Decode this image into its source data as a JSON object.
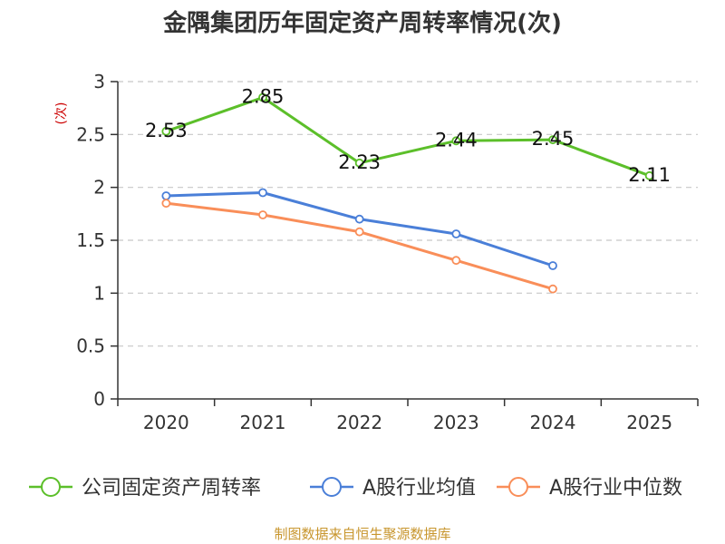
{
  "chart_data": {
    "type": "line",
    "title": "金隅集团历年固定资产周转率情况(次)",
    "ylabel": "(次)",
    "xlabel": "",
    "categories": [
      "2020",
      "2021",
      "2022",
      "2023",
      "2024",
      "2025"
    ],
    "ylim": [
      0,
      3
    ],
    "yticks": [
      "0",
      "0.5",
      "1",
      "1.5",
      "2",
      "2.5",
      "3"
    ],
    "grid": true,
    "legend_position": "bottom",
    "series": [
      {
        "name": "公司固定资产周转率",
        "color": "#5cbf2a",
        "values": [
          2.53,
          2.85,
          2.23,
          2.44,
          2.45,
          2.11
        ],
        "labels": [
          "2.53",
          "2.85",
          "2.23",
          "2.44",
          "2.45",
          "2.11"
        ]
      },
      {
        "name": "A股行业均值",
        "color": "#4a7fd8",
        "values": [
          1.92,
          1.95,
          1.7,
          1.56,
          1.26,
          null
        ]
      },
      {
        "name": "A股行业中位数",
        "color": "#f98e59",
        "values": [
          1.85,
          1.74,
          1.58,
          1.31,
          1.04,
          null
        ]
      }
    ]
  },
  "source": "制图数据来自恒生聚源数据库"
}
